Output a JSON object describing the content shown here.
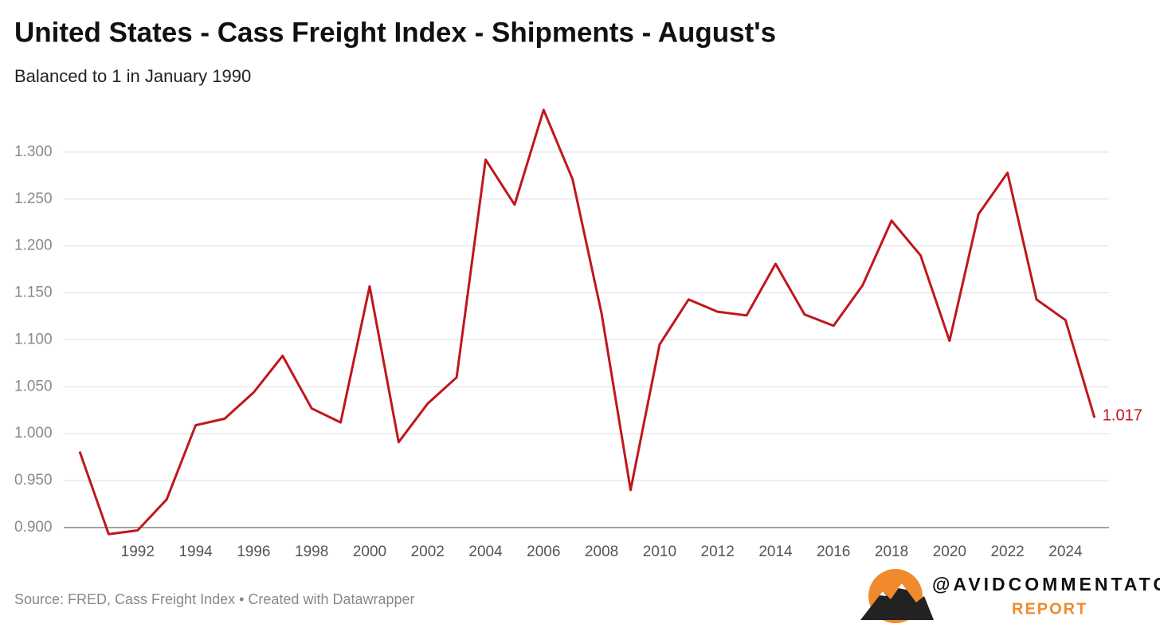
{
  "chart_data": {
    "type": "line",
    "title": "United States - Cass Freight Index - Shipments - August's",
    "subtitle": "Balanced to 1 in January 1990",
    "source": "Source: FRED, Cass Freight Index • Created with Datawrapper",
    "brand": "@AVIDCOMMENTATOR",
    "brand_sub": "REPORT",
    "x": [
      1990,
      1991,
      1992,
      1993,
      1994,
      1995,
      1996,
      1997,
      1998,
      1999,
      2000,
      2001,
      2002,
      2003,
      2004,
      2005,
      2006,
      2007,
      2008,
      2009,
      2010,
      2011,
      2012,
      2013,
      2014,
      2015,
      2016,
      2017,
      2018,
      2019,
      2020,
      2021,
      2022,
      2023,
      2024,
      2025
    ],
    "series": [
      {
        "name": "Shipments",
        "color": "#c0171c",
        "values": [
          0.981,
          0.893,
          0.897,
          0.93,
          1.009,
          1.016,
          1.044,
          1.083,
          1.027,
          1.012,
          1.157,
          0.991,
          1.032,
          1.06,
          1.292,
          1.244,
          1.345,
          1.271,
          1.128,
          0.94,
          1.095,
          1.143,
          1.13,
          1.126,
          1.181,
          1.127,
          1.115,
          1.158,
          1.227,
          1.19,
          1.099,
          1.234,
          1.278,
          1.143,
          1.121,
          1.017
        ]
      }
    ],
    "xlim": [
      1989.45,
      2025.5
    ],
    "xticks": [
      1992,
      1994,
      1996,
      1998,
      2000,
      2002,
      2004,
      2006,
      2008,
      2010,
      2012,
      2014,
      2016,
      2018,
      2020,
      2022,
      2024
    ],
    "ylim": [
      0.9,
      1.35
    ],
    "yticks": [
      {
        "value": 0.9,
        "label": "0.900"
      },
      {
        "value": 0.95,
        "label": "0.950"
      },
      {
        "value": 1.0,
        "label": "1.000"
      },
      {
        "value": 1.05,
        "label": "1.050"
      },
      {
        "value": 1.1,
        "label": "1.100"
      },
      {
        "value": 1.15,
        "label": "1.150"
      },
      {
        "value": 1.2,
        "label": "1.200"
      },
      {
        "value": 1.25,
        "label": "1.250"
      },
      {
        "value": 1.3,
        "label": "1.300"
      }
    ],
    "grid": true
  }
}
